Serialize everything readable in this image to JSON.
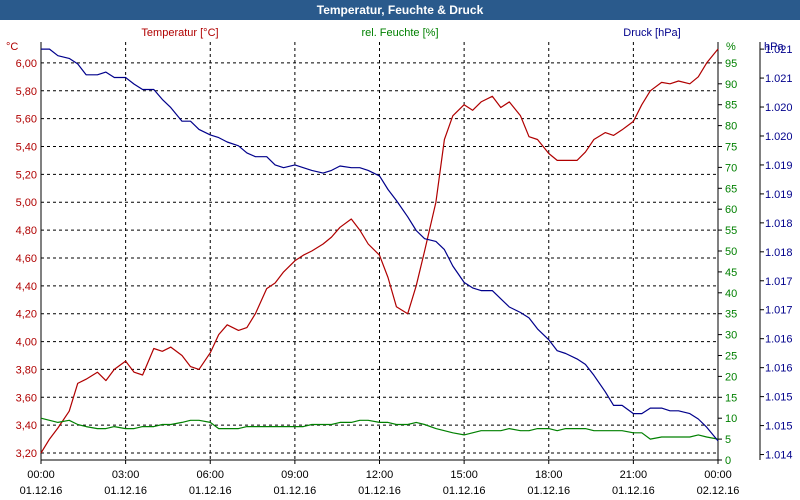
{
  "window": {
    "title": "Temperatur, Feuchte & Druck"
  },
  "legend": {
    "temperature": "Temperatur [°C]",
    "humidity": "rel. Feuchte [%]",
    "pressure": "Druck [hPa]"
  },
  "chart_data": {
    "type": "line",
    "title": "Temperatur, Feuchte & Druck",
    "colors": {
      "temperature": "#b00000",
      "humidity": "#008000",
      "pressure": "#00008b",
      "grid": "#000000"
    },
    "x_ticks": [
      {
        "h": 0,
        "time": "00:00",
        "date": "01.12.16"
      },
      {
        "h": 3,
        "time": "03:00",
        "date": "01.12.16"
      },
      {
        "h": 6,
        "time": "06:00",
        "date": "01.12.16"
      },
      {
        "h": 9,
        "time": "09:00",
        "date": "01.12.16"
      },
      {
        "h": 12,
        "time": "12:00",
        "date": "01.12.16"
      },
      {
        "h": 15,
        "time": "15:00",
        "date": "01.12.16"
      },
      {
        "h": 18,
        "time": "18:00",
        "date": "01.12.16"
      },
      {
        "h": 21,
        "time": "21:00",
        "date": "01.12.16"
      },
      {
        "h": 24,
        "time": "00:00",
        "date": "02.12.16"
      }
    ],
    "axes": {
      "temperature": {
        "unit": "°C",
        "min": 3.15,
        "max": 6.15,
        "ticks": [
          {
            "v": 3.2,
            "label": "3,20"
          },
          {
            "v": 3.4,
            "label": "3,40"
          },
          {
            "v": 3.6,
            "label": "3,60"
          },
          {
            "v": 3.8,
            "label": "3,80"
          },
          {
            "v": 4.0,
            "label": "4,00"
          },
          {
            "v": 4.2,
            "label": "4,20"
          },
          {
            "v": 4.4,
            "label": "4,40"
          },
          {
            "v": 4.6,
            "label": "4,60"
          },
          {
            "v": 4.8,
            "label": "4,80"
          },
          {
            "v": 5.0,
            "label": "5,00"
          },
          {
            "v": 5.2,
            "label": "5,20"
          },
          {
            "v": 5.4,
            "label": "5,40"
          },
          {
            "v": 5.6,
            "label": "5,60"
          },
          {
            "v": 5.8,
            "label": "5,80"
          },
          {
            "v": 6.0,
            "label": "6,00"
          }
        ]
      },
      "humidity": {
        "unit": "%",
        "min": 0,
        "max": 100,
        "ticks": [
          {
            "v": 0,
            "label": "0"
          },
          {
            "v": 5,
            "label": "5"
          },
          {
            "v": 10,
            "label": "10"
          },
          {
            "v": 15,
            "label": "15"
          },
          {
            "v": 20,
            "label": "20"
          },
          {
            "v": 25,
            "label": "25"
          },
          {
            "v": 30,
            "label": "30"
          },
          {
            "v": 35,
            "label": "35"
          },
          {
            "v": 40,
            "label": "40"
          },
          {
            "v": 45,
            "label": "45"
          },
          {
            "v": 50,
            "label": "50"
          },
          {
            "v": 55,
            "label": "55"
          },
          {
            "v": 60,
            "label": "60"
          },
          {
            "v": 65,
            "label": "65"
          },
          {
            "v": 70,
            "label": "70"
          },
          {
            "v": 75,
            "label": "75"
          },
          {
            "v": 80,
            "label": "80"
          },
          {
            "v": 85,
            "label": "85"
          },
          {
            "v": 90,
            "label": "90"
          },
          {
            "v": 95,
            "label": "95"
          }
        ]
      },
      "pressure": {
        "unit": "hPa",
        "min": 1014.1,
        "max": 1021.75,
        "ticks": [
          {
            "v": 1014.2,
            "label": "1.014"
          },
          {
            "v": 1014.73,
            "label": "1.015"
          },
          {
            "v": 1015.26,
            "label": "1.015"
          },
          {
            "v": 1015.79,
            "label": "1.016"
          },
          {
            "v": 1016.32,
            "label": "1.016"
          },
          {
            "v": 1016.85,
            "label": "1.017"
          },
          {
            "v": 1017.38,
            "label": "1.017"
          },
          {
            "v": 1017.91,
            "label": "1.018"
          },
          {
            "v": 1018.44,
            "label": "1.018"
          },
          {
            "v": 1018.97,
            "label": "1.019"
          },
          {
            "v": 1019.5,
            "label": "1.019"
          },
          {
            "v": 1020.03,
            "label": "1.020"
          },
          {
            "v": 1020.56,
            "label": "1.020"
          },
          {
            "v": 1021.09,
            "label": "1.021"
          },
          {
            "v": 1021.62,
            "label": "1.021"
          }
        ]
      }
    },
    "series": [
      {
        "name": "Temperatur [°C]",
        "axis": "temperature",
        "key": "temperature",
        "x": [
          0,
          0.3,
          0.6,
          1,
          1.3,
          1.6,
          2,
          2.3,
          2.6,
          3,
          3.3,
          3.6,
          4,
          4.3,
          4.6,
          5,
          5.3,
          5.6,
          6,
          6.3,
          6.6,
          7,
          7.3,
          7.6,
          8,
          8.3,
          8.6,
          9,
          9.3,
          9.6,
          10,
          10.3,
          10.6,
          11,
          11.3,
          11.6,
          12,
          12.3,
          12.6,
          13,
          13.3,
          13.6,
          14,
          14.3,
          14.6,
          15,
          15.3,
          15.6,
          16,
          16.3,
          16.6,
          17,
          17.3,
          17.6,
          18,
          18.3,
          18.6,
          19,
          19.3,
          19.6,
          20,
          20.3,
          20.6,
          21,
          21.3,
          21.6,
          22,
          22.3,
          22.6,
          23,
          23.3,
          23.6,
          24
        ],
        "values": [
          3.2,
          3.3,
          3.38,
          3.5,
          3.7,
          3.73,
          3.78,
          3.72,
          3.8,
          3.86,
          3.78,
          3.76,
          3.95,
          3.93,
          3.96,
          3.9,
          3.82,
          3.8,
          3.92,
          4.05,
          4.12,
          4.08,
          4.1,
          4.2,
          4.38,
          4.42,
          4.5,
          4.58,
          4.62,
          4.65,
          4.7,
          4.75,
          4.82,
          4.88,
          4.8,
          4.7,
          4.62,
          4.46,
          4.25,
          4.2,
          4.4,
          4.65,
          5.0,
          5.45,
          5.62,
          5.7,
          5.66,
          5.72,
          5.76,
          5.68,
          5.72,
          5.62,
          5.47,
          5.45,
          5.35,
          5.3,
          5.3,
          5.3,
          5.36,
          5.45,
          5.5,
          5.48,
          5.52,
          5.58,
          5.7,
          5.8,
          5.86,
          5.85,
          5.87,
          5.85,
          5.9,
          6.0,
          6.1
        ]
      },
      {
        "name": "rel. Feuchte [%]",
        "axis": "humidity",
        "key": "humidity",
        "x": [
          0,
          0.3,
          0.6,
          1,
          1.3,
          1.6,
          2,
          2.3,
          2.6,
          3,
          3.3,
          3.6,
          4,
          4.3,
          4.6,
          5,
          5.3,
          5.6,
          6,
          6.3,
          6.6,
          7,
          7.3,
          7.6,
          8,
          8.3,
          8.6,
          9,
          9.3,
          9.6,
          10,
          10.3,
          10.6,
          11,
          11.3,
          11.6,
          12,
          12.3,
          12.6,
          13,
          13.3,
          13.6,
          14,
          14.3,
          14.6,
          15,
          15.3,
          15.6,
          16,
          16.3,
          16.6,
          17,
          17.3,
          17.6,
          18,
          18.3,
          18.6,
          19,
          19.3,
          19.6,
          20,
          20.3,
          20.6,
          21,
          21.3,
          21.6,
          22,
          22.3,
          22.6,
          23,
          23.3,
          23.6,
          24
        ],
        "values": [
          10,
          9.5,
          9,
          9.5,
          8.5,
          8,
          7.5,
          7.5,
          8,
          7.5,
          7.5,
          8,
          8,
          8.5,
          8.5,
          9,
          9.5,
          9.5,
          9,
          7.5,
          7.5,
          7.5,
          8,
          8,
          8,
          8,
          8,
          8,
          8,
          8.5,
          8.5,
          8.5,
          9,
          9,
          9.5,
          9.5,
          9,
          9,
          8.5,
          8.5,
          9,
          8.5,
          7.5,
          7,
          6.5,
          6,
          6.5,
          7,
          7,
          7,
          7.5,
          7,
          7,
          7.5,
          7.5,
          7,
          7.5,
          7.5,
          7.5,
          7,
          7,
          7,
          7,
          6.5,
          6.5,
          5,
          5.5,
          5.5,
          5.5,
          5.5,
          6,
          5.5,
          5
        ]
      },
      {
        "name": "Druck [hPa]",
        "axis": "pressure",
        "key": "pressure",
        "x": [
          0,
          0.3,
          0.6,
          1,
          1.3,
          1.6,
          2,
          2.3,
          2.6,
          3,
          3.3,
          3.6,
          4,
          4.3,
          4.6,
          5,
          5.3,
          5.6,
          6,
          6.3,
          6.6,
          7,
          7.3,
          7.6,
          8,
          8.3,
          8.6,
          9,
          9.3,
          9.6,
          10,
          10.3,
          10.6,
          11,
          11.3,
          11.6,
          12,
          12.3,
          12.6,
          13,
          13.3,
          13.6,
          14,
          14.3,
          14.6,
          15,
          15.3,
          15.6,
          16,
          16.3,
          16.6,
          17,
          17.3,
          17.6,
          18,
          18.3,
          18.6,
          19,
          19.3,
          19.6,
          20,
          20.3,
          20.6,
          21,
          21.3,
          21.6,
          22,
          22.3,
          22.6,
          23,
          23.3,
          23.6,
          24
        ],
        "values": [
          1021.62,
          1021.62,
          1021.5,
          1021.45,
          1021.35,
          1021.15,
          1021.15,
          1021.2,
          1021.1,
          1021.1,
          1020.98,
          1020.88,
          1020.88,
          1020.7,
          1020.55,
          1020.3,
          1020.3,
          1020.15,
          1020.05,
          1020.0,
          1019.92,
          1019.85,
          1019.72,
          1019.65,
          1019.65,
          1019.5,
          1019.45,
          1019.5,
          1019.45,
          1019.4,
          1019.35,
          1019.4,
          1019.48,
          1019.45,
          1019.45,
          1019.4,
          1019.3,
          1019.05,
          1018.85,
          1018.55,
          1018.3,
          1018.15,
          1018.1,
          1017.95,
          1017.65,
          1017.35,
          1017.25,
          1017.2,
          1017.2,
          1017.05,
          1016.9,
          1016.8,
          1016.7,
          1016.5,
          1016.3,
          1016.1,
          1016.05,
          1015.95,
          1015.85,
          1015.65,
          1015.35,
          1015.1,
          1015.1,
          1014.95,
          1014.95,
          1015.05,
          1015.05,
          1015.0,
          1015.0,
          1014.95,
          1014.85,
          1014.7,
          1014.45
        ]
      }
    ]
  }
}
